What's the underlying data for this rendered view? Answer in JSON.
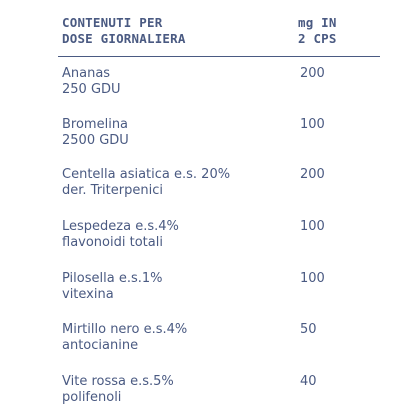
{
  "header": {
    "left_line1": "CONTENUTI PER",
    "left_line2": "DOSE GIORNALIERA",
    "right_line1": "mg IN",
    "right_line2": "2 CPS"
  },
  "rows": [
    {
      "line1": "Ananas",
      "line2": "250 GDU",
      "value": "200"
    },
    {
      "line1": "Bromelina",
      "line2": "2500 GDU",
      "value": "100"
    },
    {
      "line1": "Centella asiatica e.s. 20%",
      "line2": "der. Triterpenici",
      "value": "200"
    },
    {
      "line1": "Lespedeza e.s.4%",
      "line2": "flavonoidi totali",
      "value": "100"
    },
    {
      "line1": "Pilosella e.s.1%",
      "line2": "vitexina",
      "value": "100"
    },
    {
      "line1": "Mirtillo nero e.s.4%",
      "line2": "antocianine",
      "value": "50"
    },
    {
      "line1": "Vite rossa e.s.5%",
      "line2": "polifenoli",
      "value": "40"
    }
  ]
}
